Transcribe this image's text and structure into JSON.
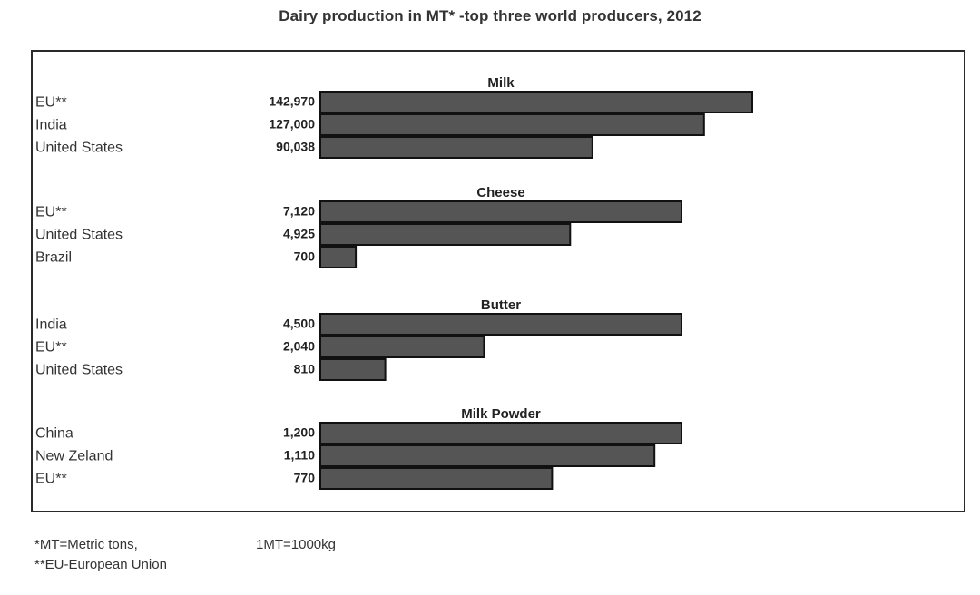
{
  "title": "Dairy production in MT*  -top three world producers, 2012",
  "chart_data": {
    "type": "bar",
    "orientation": "horizontal",
    "title": "Dairy production in MT*  -top three world producers, 2012",
    "bar_color": "#555555",
    "bar_edge_color": "#111111",
    "groups": [
      {
        "name": "Milk",
        "categories": [
          "EU**",
          "India",
          "United States"
        ],
        "values": [
          142970,
          127000,
          90038
        ],
        "value_labels": [
          "142,970",
          "127,000",
          "90,038"
        ]
      },
      {
        "name": "Cheese",
        "categories": [
          "EU**",
          "United States",
          "Brazil"
        ],
        "values": [
          7120,
          4925,
          700
        ],
        "value_labels": [
          "7,120",
          "4,925",
          "700"
        ]
      },
      {
        "name": "Butter",
        "categories": [
          "India",
          "EU**",
          "United States"
        ],
        "values": [
          4500,
          2040,
          810
        ],
        "value_labels": [
          "4,500",
          "2,040",
          "810"
        ]
      },
      {
        "name": "Milk Powder",
        "categories": [
          "China",
          "New Zeland",
          "EU**"
        ],
        "values": [
          1200,
          1110,
          770
        ],
        "value_labels": [
          "1,200",
          "1,110",
          "770"
        ]
      }
    ]
  },
  "footnotes": {
    "mt_definition": "*MT=Metric tons,",
    "mt_conversion": "1MT=1000kg",
    "eu_definition": "**EU-European Union"
  }
}
